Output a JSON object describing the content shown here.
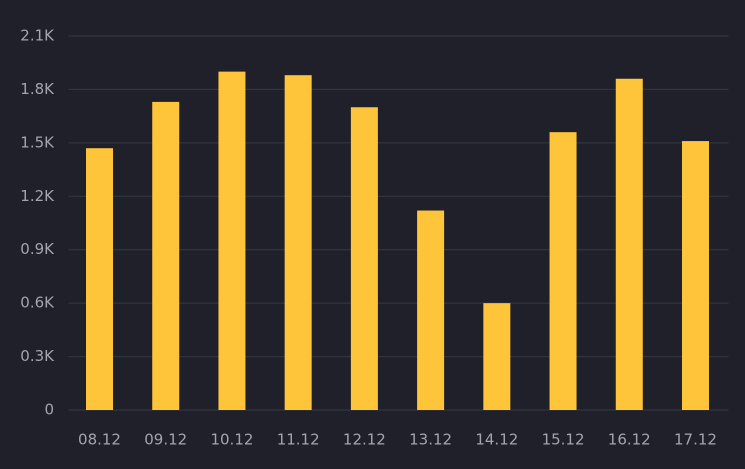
{
  "chart_data": {
    "type": "bar",
    "categories": [
      "08.12",
      "09.12",
      "10.12",
      "11.12",
      "12.12",
      "13.12",
      "14.12",
      "15.12",
      "16.12",
      "17.12"
    ],
    "values": [
      1470,
      1730,
      1900,
      1880,
      1700,
      1120,
      600,
      1560,
      1860,
      1510
    ],
    "color": "#ffc53a",
    "ylim": [
      0,
      2100
    ],
    "yticks": [
      0,
      {
        "value": 300,
        "label": "0.3K"
      },
      {
        "value": 600,
        "label": "0.6K"
      },
      {
        "value": 900,
        "label": "0.9K"
      },
      {
        "value": 1200,
        "label": "1.2K"
      },
      {
        "value": 1500,
        "label": "1.5K"
      },
      {
        "value": 1800,
        "label": "1.8K"
      },
      {
        "value": 2100,
        "label": "2.1K"
      }
    ],
    "grid": true
  }
}
